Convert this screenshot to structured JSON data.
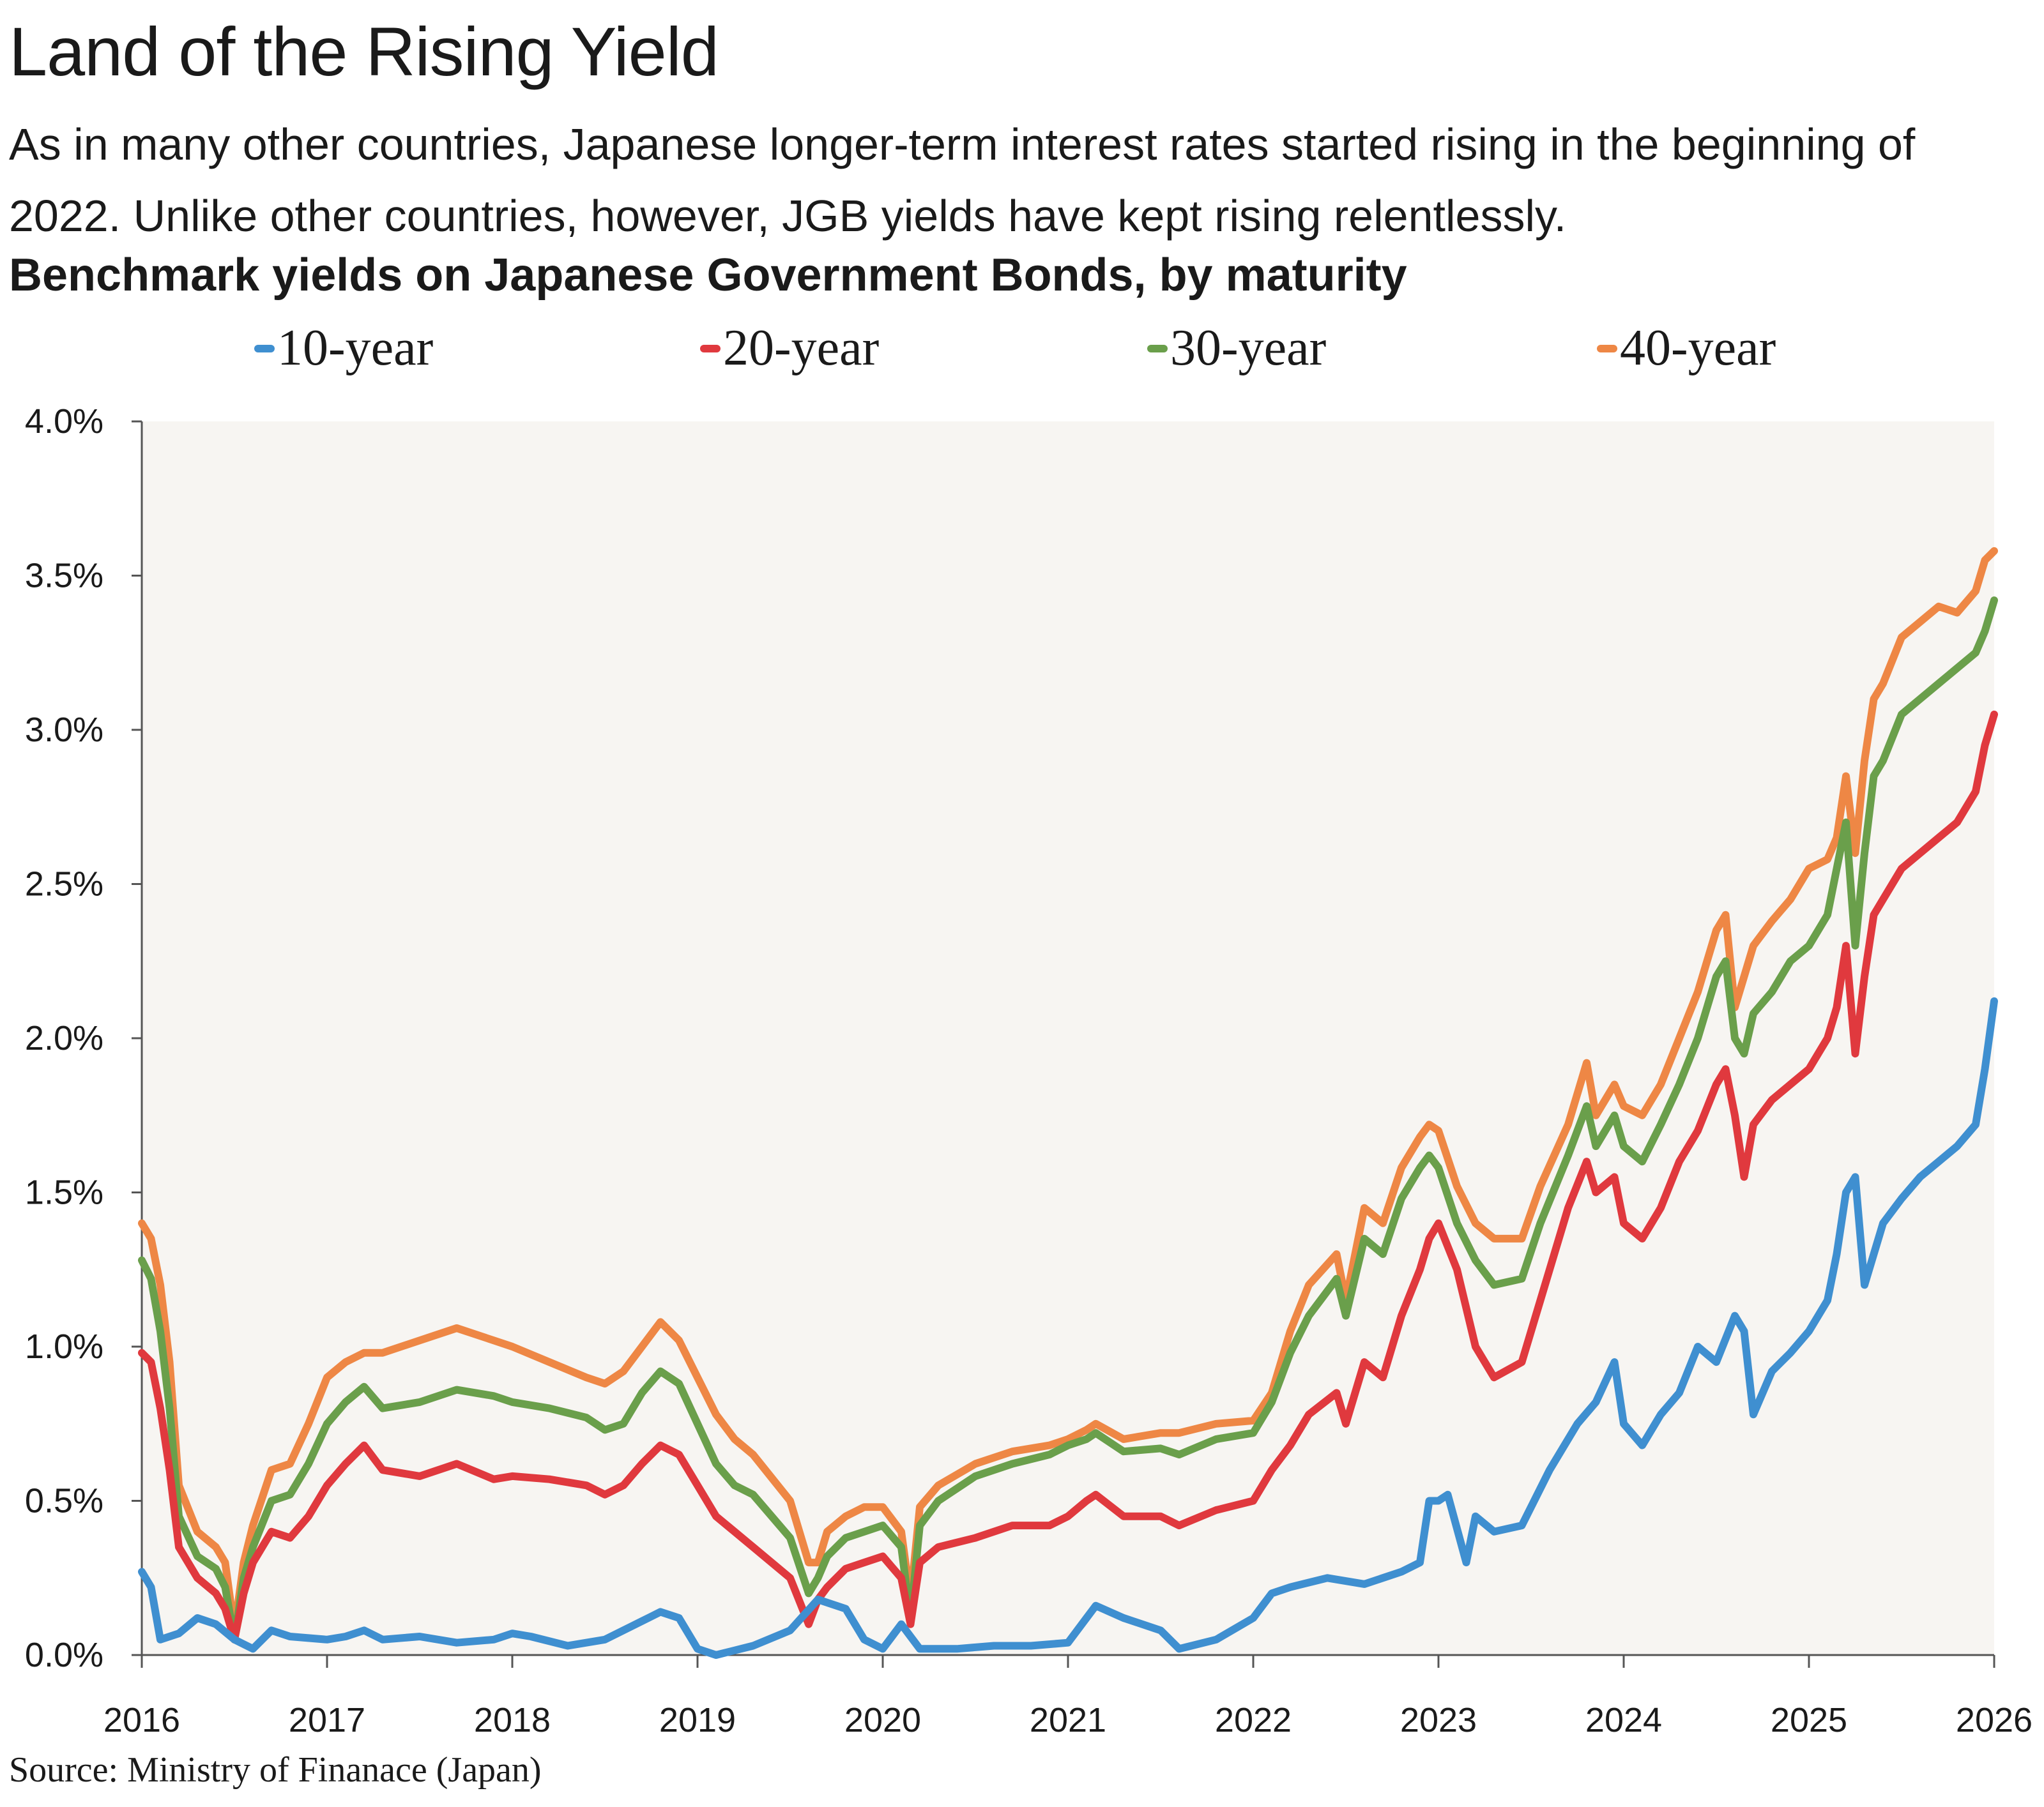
{
  "header": {
    "title": "Land of the Rising Yield",
    "subtitle": "As in many other countries, Japanese longer-term interest rates started rising in the beginning of 2022. Unlike other countries, however, JGB yields have kept rising relentlessly.",
    "chart_title": "Benchmark yields on Japanese Government Bonds, by maturity"
  },
  "footer": {
    "source": "Source: Ministry of Finanace (Japan)"
  },
  "colors": {
    "background": "#f7f5f2",
    "ten_year": "#3f8fd0",
    "twenty_year": "#e0393e",
    "thirty_year": "#6a9f4b",
    "forty_year": "#ee8745",
    "axis": "#555555"
  },
  "chart_data": {
    "type": "line",
    "title": "Benchmark yields on Japanese Government Bonds, by maturity",
    "xlabel": "",
    "ylabel": "",
    "xlim": [
      2016,
      2026
    ],
    "ylim": [
      0,
      4.0
    ],
    "x_ticks": [
      "2016",
      "2017",
      "2018",
      "2019",
      "2020",
      "2021",
      "2022",
      "2023",
      "2024",
      "2025",
      "2026"
    ],
    "y_ticks": [
      "0.0%",
      "0.5%",
      "1.0%",
      "1.5%",
      "2.0%",
      "2.5%",
      "3.0%",
      "3.5%",
      "4.0%"
    ],
    "grid": false,
    "legend": "top",
    "series": [
      {
        "name": "10-year",
        "color": "#3f8fd0",
        "x": [
          2016.0,
          2016.05,
          2016.1,
          2016.2,
          2016.3,
          2016.4,
          2016.5,
          2016.6,
          2016.7,
          2016.8,
          2017.0,
          2017.1,
          2017.2,
          2017.3,
          2017.5,
          2017.7,
          2017.9,
          2018.0,
          2018.1,
          2018.3,
          2018.5,
          2018.7,
          2018.8,
          2018.9,
          2019.0,
          2019.1,
          2019.3,
          2019.5,
          2019.65,
          2019.8,
          2019.9,
          2020.0,
          2020.1,
          2020.2,
          2020.4,
          2020.6,
          2020.8,
          2021.0,
          2021.1,
          2021.15,
          2021.3,
          2021.5,
          2021.6,
          2021.8,
          2022.0,
          2022.1,
          2022.2,
          2022.4,
          2022.6,
          2022.8,
          2022.9,
          2022.95,
          2023.0,
          2023.05,
          2023.15,
          2023.2,
          2023.3,
          2023.45,
          2023.6,
          2023.75,
          2023.85,
          2023.95,
          2024.0,
          2024.1,
          2024.2,
          2024.3,
          2024.4,
          2024.5,
          2024.6,
          2024.65,
          2024.7,
          2024.8,
          2024.9,
          2025.0,
          2025.1,
          2025.15,
          2025.2,
          2025.25,
          2025.3,
          2025.4,
          2025.5,
          2025.6,
          2025.7,
          2025.8,
          2025.9,
          2025.95,
          2026.0
        ],
        "values": [
          0.27,
          0.22,
          0.05,
          0.07,
          0.12,
          0.1,
          0.05,
          0.02,
          0.08,
          0.06,
          0.05,
          0.06,
          0.08,
          0.05,
          0.06,
          0.04,
          0.05,
          0.07,
          0.06,
          0.03,
          0.05,
          0.11,
          0.14,
          0.12,
          0.02,
          0.0,
          0.03,
          0.08,
          0.18,
          0.15,
          0.05,
          0.02,
          0.1,
          0.02,
          0.02,
          0.03,
          0.03,
          0.04,
          0.12,
          0.16,
          0.12,
          0.08,
          0.02,
          0.05,
          0.12,
          0.2,
          0.22,
          0.25,
          0.23,
          0.27,
          0.3,
          0.5,
          0.5,
          0.52,
          0.3,
          0.45,
          0.4,
          0.42,
          0.6,
          0.75,
          0.82,
          0.95,
          0.75,
          0.68,
          0.78,
          0.85,
          1.0,
          0.95,
          1.1,
          1.05,
          0.78,
          0.92,
          0.98,
          1.05,
          1.15,
          1.3,
          1.5,
          1.55,
          1.2,
          1.4,
          1.48,
          1.55,
          1.6,
          1.65,
          1.72,
          1.9,
          2.12
        ]
      },
      {
        "name": "20-year",
        "color": "#e0393e",
        "x": [
          2016.0,
          2016.05,
          2016.1,
          2016.15,
          2016.2,
          2016.3,
          2016.4,
          2016.45,
          2016.5,
          2016.55,
          2016.6,
          2016.7,
          2016.8,
          2016.9,
          2017.0,
          2017.1,
          2017.2,
          2017.3,
          2017.5,
          2017.7,
          2017.9,
          2018.0,
          2018.2,
          2018.4,
          2018.5,
          2018.6,
          2018.7,
          2018.8,
          2018.9,
          2019.0,
          2019.1,
          2019.2,
          2019.3,
          2019.5,
          2019.6,
          2019.65,
          2019.7,
          2019.8,
          2019.9,
          2020.0,
          2020.1,
          2020.15,
          2020.2,
          2020.3,
          2020.5,
          2020.7,
          2020.9,
          2021.0,
          2021.1,
          2021.15,
          2021.3,
          2021.5,
          2021.6,
          2021.8,
          2022.0,
          2022.1,
          2022.2,
          2022.3,
          2022.45,
          2022.5,
          2022.6,
          2022.7,
          2022.8,
          2022.9,
          2022.95,
          2023.0,
          2023.1,
          2023.2,
          2023.3,
          2023.45,
          2023.55,
          2023.7,
          2023.8,
          2023.85,
          2023.95,
          2024.0,
          2024.1,
          2024.2,
          2024.3,
          2024.4,
          2024.5,
          2024.55,
          2024.6,
          2024.65,
          2024.7,
          2024.8,
          2024.9,
          2025.0,
          2025.1,
          2025.15,
          2025.2,
          2025.25,
          2025.3,
          2025.35,
          2025.4,
          2025.5,
          2025.6,
          2025.7,
          2025.8,
          2025.9,
          2025.95,
          2026.0
        ],
        "values": [
          0.98,
          0.95,
          0.8,
          0.6,
          0.35,
          0.25,
          0.2,
          0.15,
          0.05,
          0.2,
          0.3,
          0.4,
          0.38,
          0.45,
          0.55,
          0.62,
          0.68,
          0.6,
          0.58,
          0.62,
          0.57,
          0.58,
          0.57,
          0.55,
          0.52,
          0.55,
          0.62,
          0.68,
          0.65,
          0.55,
          0.45,
          0.4,
          0.35,
          0.25,
          0.1,
          0.18,
          0.22,
          0.28,
          0.3,
          0.32,
          0.25,
          0.1,
          0.3,
          0.35,
          0.38,
          0.42,
          0.42,
          0.45,
          0.5,
          0.52,
          0.45,
          0.45,
          0.42,
          0.47,
          0.5,
          0.6,
          0.68,
          0.78,
          0.85,
          0.75,
          0.95,
          0.9,
          1.1,
          1.25,
          1.35,
          1.4,
          1.25,
          1.0,
          0.9,
          0.95,
          1.15,
          1.45,
          1.6,
          1.5,
          1.55,
          1.4,
          1.35,
          1.45,
          1.6,
          1.7,
          1.85,
          1.9,
          1.75,
          1.55,
          1.72,
          1.8,
          1.85,
          1.9,
          2.0,
          2.1,
          2.3,
          1.95,
          2.2,
          2.4,
          2.45,
          2.55,
          2.6,
          2.65,
          2.7,
          2.8,
          2.95,
          3.05
        ]
      },
      {
        "name": "30-year",
        "color": "#6a9f4b",
        "x": [
          2016.0,
          2016.05,
          2016.1,
          2016.15,
          2016.2,
          2016.3,
          2016.4,
          2016.45,
          2016.5,
          2016.55,
          2016.6,
          2016.7,
          2016.8,
          2016.9,
          2017.0,
          2017.1,
          2017.2,
          2017.3,
          2017.5,
          2017.7,
          2017.9,
          2018.0,
          2018.2,
          2018.4,
          2018.5,
          2018.6,
          2018.7,
          2018.8,
          2018.9,
          2019.0,
          2019.1,
          2019.2,
          2019.3,
          2019.5,
          2019.6,
          2019.65,
          2019.7,
          2019.8,
          2019.9,
          2020.0,
          2020.1,
          2020.15,
          2020.2,
          2020.3,
          2020.5,
          2020.7,
          2020.9,
          2021.0,
          2021.1,
          2021.15,
          2021.3,
          2021.5,
          2021.6,
          2021.8,
          2022.0,
          2022.1,
          2022.2,
          2022.3,
          2022.45,
          2022.5,
          2022.6,
          2022.7,
          2022.8,
          2022.9,
          2022.95,
          2023.0,
          2023.1,
          2023.2,
          2023.3,
          2023.45,
          2023.55,
          2023.7,
          2023.8,
          2023.85,
          2023.95,
          2024.0,
          2024.1,
          2024.2,
          2024.3,
          2024.4,
          2024.5,
          2024.55,
          2024.6,
          2024.65,
          2024.7,
          2024.8,
          2024.9,
          2025.0,
          2025.1,
          2025.15,
          2025.2,
          2025.25,
          2025.3,
          2025.35,
          2025.4,
          2025.5,
          2025.6,
          2025.7,
          2025.8,
          2025.9,
          2025.95,
          2026.0
        ],
        "values": [
          1.28,
          1.22,
          1.05,
          0.8,
          0.45,
          0.32,
          0.28,
          0.22,
          0.05,
          0.25,
          0.35,
          0.5,
          0.52,
          0.62,
          0.75,
          0.82,
          0.87,
          0.8,
          0.82,
          0.86,
          0.84,
          0.82,
          0.8,
          0.77,
          0.73,
          0.75,
          0.85,
          0.92,
          0.88,
          0.75,
          0.62,
          0.55,
          0.52,
          0.38,
          0.2,
          0.25,
          0.32,
          0.38,
          0.4,
          0.42,
          0.35,
          0.12,
          0.42,
          0.5,
          0.58,
          0.62,
          0.65,
          0.68,
          0.7,
          0.72,
          0.66,
          0.67,
          0.65,
          0.7,
          0.72,
          0.82,
          0.98,
          1.1,
          1.22,
          1.1,
          1.35,
          1.3,
          1.48,
          1.58,
          1.62,
          1.58,
          1.4,
          1.28,
          1.2,
          1.22,
          1.4,
          1.62,
          1.78,
          1.65,
          1.75,
          1.65,
          1.6,
          1.72,
          1.85,
          2.0,
          2.2,
          2.25,
          2.0,
          1.95,
          2.08,
          2.15,
          2.25,
          2.3,
          2.4,
          2.55,
          2.7,
          2.3,
          2.6,
          2.85,
          2.9,
          3.05,
          3.1,
          3.15,
          3.2,
          3.25,
          3.32,
          3.42
        ]
      },
      {
        "name": "40-year",
        "color": "#ee8745",
        "x": [
          2016.0,
          2016.05,
          2016.1,
          2016.15,
          2016.2,
          2016.3,
          2016.4,
          2016.45,
          2016.5,
          2016.55,
          2016.6,
          2016.7,
          2016.8,
          2016.9,
          2017.0,
          2017.1,
          2017.2,
          2017.3,
          2017.5,
          2017.7,
          2017.9,
          2018.0,
          2018.2,
          2018.4,
          2018.5,
          2018.6,
          2018.7,
          2018.8,
          2018.9,
          2019.0,
          2019.1,
          2019.2,
          2019.3,
          2019.5,
          2019.6,
          2019.65,
          2019.7,
          2019.8,
          2019.9,
          2020.0,
          2020.1,
          2020.15,
          2020.2,
          2020.3,
          2020.5,
          2020.7,
          2020.9,
          2021.0,
          2021.1,
          2021.15,
          2021.3,
          2021.5,
          2021.6,
          2021.8,
          2022.0,
          2022.1,
          2022.2,
          2022.3,
          2022.45,
          2022.5,
          2022.6,
          2022.7,
          2022.8,
          2022.9,
          2022.95,
          2023.0,
          2023.1,
          2023.2,
          2023.3,
          2023.45,
          2023.55,
          2023.7,
          2023.8,
          2023.85,
          2023.95,
          2024.0,
          2024.1,
          2024.2,
          2024.3,
          2024.4,
          2024.5,
          2024.55,
          2024.6,
          2024.65,
          2024.7,
          2024.8,
          2024.9,
          2025.0,
          2025.1,
          2025.15,
          2025.2,
          2025.25,
          2025.3,
          2025.35,
          2025.4,
          2025.5,
          2025.6,
          2025.7,
          2025.8,
          2025.9,
          2025.95,
          2026.0
        ],
        "values": [
          1.4,
          1.35,
          1.2,
          0.95,
          0.55,
          0.4,
          0.35,
          0.3,
          0.08,
          0.3,
          0.42,
          0.6,
          0.62,
          0.75,
          0.9,
          0.95,
          0.98,
          0.98,
          1.02,
          1.06,
          1.02,
          1.0,
          0.95,
          0.9,
          0.88,
          0.92,
          1.0,
          1.08,
          1.02,
          0.9,
          0.78,
          0.7,
          0.65,
          0.5,
          0.3,
          0.3,
          0.4,
          0.45,
          0.48,
          0.48,
          0.4,
          0.18,
          0.48,
          0.55,
          0.62,
          0.66,
          0.68,
          0.7,
          0.73,
          0.75,
          0.7,
          0.72,
          0.72,
          0.75,
          0.76,
          0.85,
          1.05,
          1.2,
          1.3,
          1.15,
          1.45,
          1.4,
          1.58,
          1.68,
          1.72,
          1.7,
          1.52,
          1.4,
          1.35,
          1.35,
          1.52,
          1.72,
          1.92,
          1.75,
          1.85,
          1.78,
          1.75,
          1.85,
          2.0,
          2.15,
          2.35,
          2.4,
          2.1,
          2.2,
          2.3,
          2.38,
          2.45,
          2.55,
          2.58,
          2.65,
          2.85,
          2.6,
          2.9,
          3.1,
          3.15,
          3.3,
          3.35,
          3.4,
          3.38,
          3.45,
          3.55,
          3.58
        ]
      }
    ]
  }
}
